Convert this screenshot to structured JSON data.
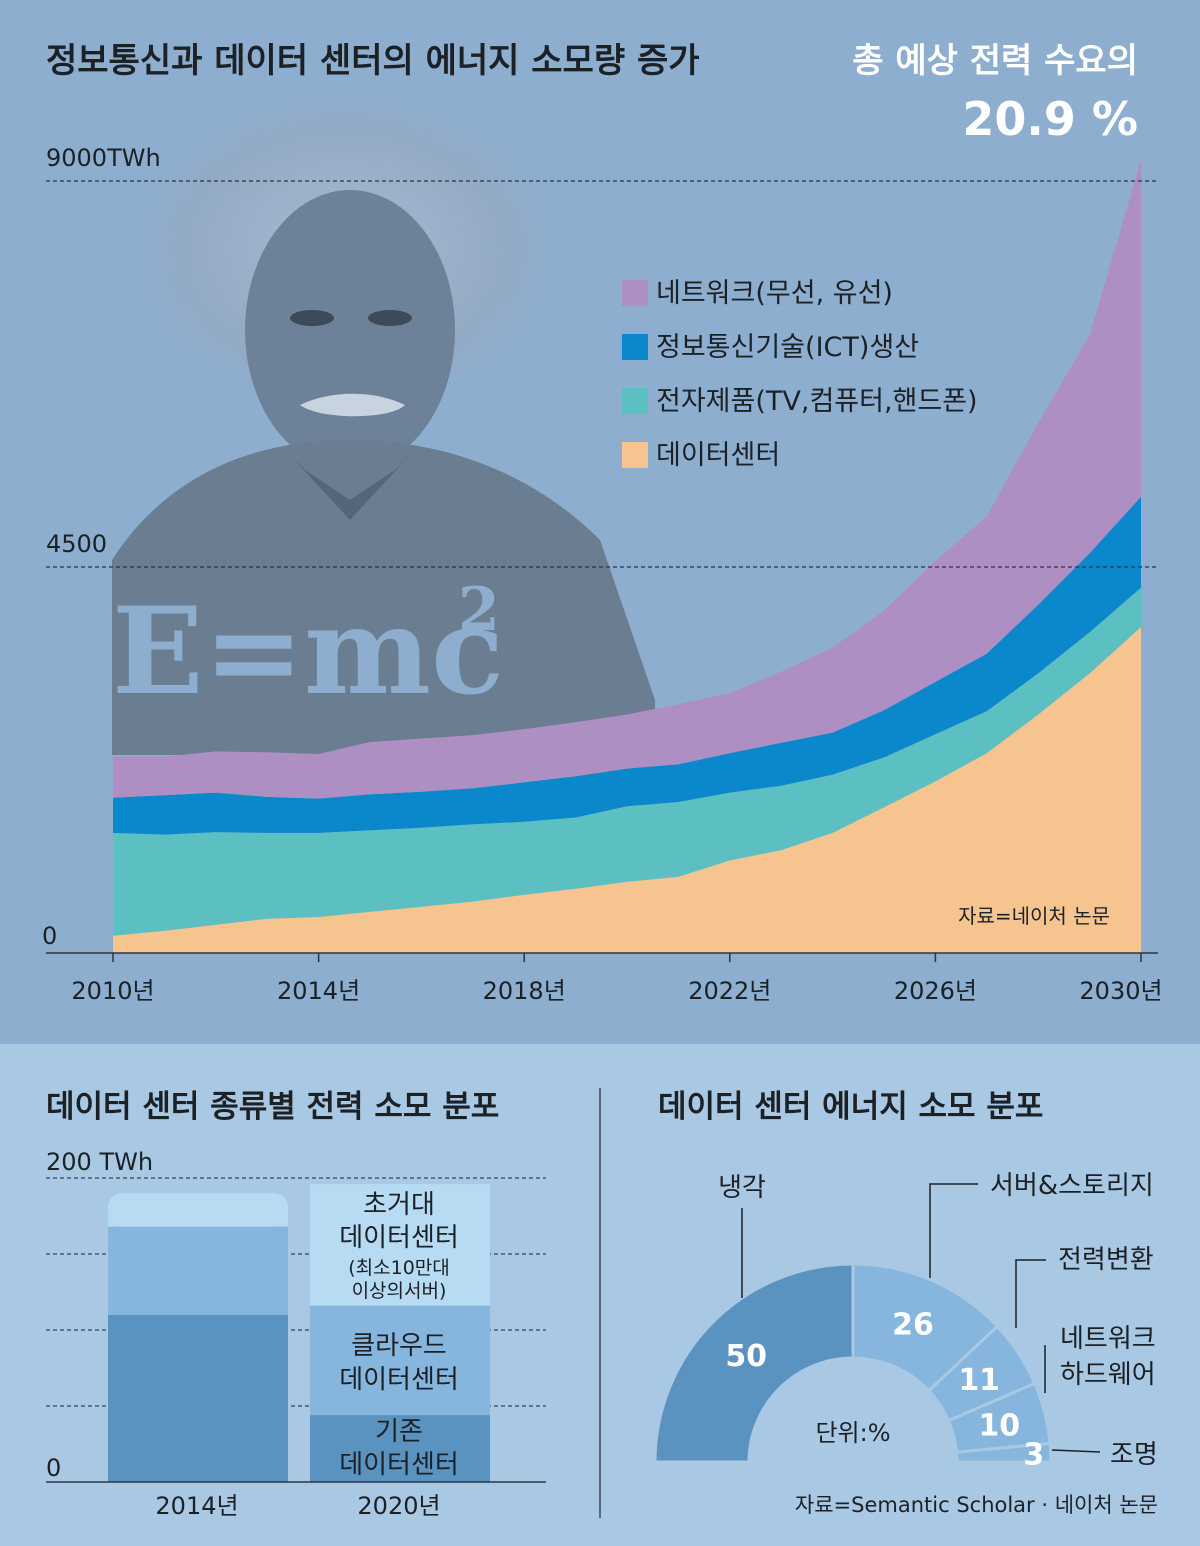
{
  "main_chart": {
    "title": "정보통신과 데이터 센터의 에너지 소모량 증가",
    "callout_line1": "총 예상 전력 수요의",
    "callout_value": "20.9 %",
    "ytick_labels": [
      "9000TWh",
      "4500",
      "0"
    ],
    "xtick_labels": [
      "2010년",
      "2014년",
      "2018년",
      "2022년",
      "2026년",
      "2030년"
    ],
    "source": "자료=네이처 논문",
    "formula": "E=mc",
    "formula_sup": "2"
  },
  "bar_chart": {
    "title": "데이터 센터 종류별 전력 소모 분포",
    "ytick_labels": [
      "200 TWh",
      "0"
    ],
    "categories": [
      "2014년",
      "2020년"
    ],
    "segment_labels": {
      "hyperscale_1": "초거대",
      "hyperscale_2": "데이터센터",
      "hyperscale_3": "(최소10만대",
      "hyperscale_4": "이상의서버)",
      "cloud_1": "클라우드",
      "cloud_2": "데이터센터",
      "traditional_1": "기존",
      "traditional_2": "데이터센터"
    }
  },
  "donut_chart": {
    "title": "데이터 센터 에너지 소모 분포",
    "labels": [
      "냉각",
      "서버&스토리지",
      "전력변환",
      "네트워크",
      "하드웨어",
      "조명"
    ],
    "values_text": [
      "50",
      "26",
      "11",
      "10",
      "3"
    ],
    "unit": "단위:%",
    "source": "자료=Semantic Scholar · 네이처 논문"
  },
  "colors": {
    "network": "#ae8fc3",
    "ict": "#0b87cc",
    "electronics": "#5cc0c3",
    "datacenter": "#f6c48f",
    "bar_traditional": "#5b93c0",
    "bar_cloud": "#86b6dd",
    "bar_hyperscale": "#b7dbf3"
  },
  "chart_data": [
    {
      "type": "area",
      "title": "정보통신과 데이터 센터의 에너지 소모량 증가",
      "ylabel": "TWh",
      "ylim": [
        0,
        9000
      ],
      "x": [
        2010,
        2011,
        2012,
        2013,
        2014,
        2015,
        2016,
        2017,
        2018,
        2019,
        2020,
        2021,
        2022,
        2023,
        2024,
        2025,
        2026,
        2027,
        2028,
        2029,
        2030
      ],
      "stacked": true,
      "series": [
        {
          "name": "데이터센터",
          "values": [
            200,
            260,
            330,
            400,
            420,
            480,
            540,
            600,
            680,
            750,
            830,
            890,
            1080,
            1200,
            1400,
            1700,
            2000,
            2330,
            2780,
            3260,
            3800
          ]
        },
        {
          "name": "전자제품(TV,컴퓨터,핸드폰)",
          "values": [
            1200,
            1120,
            1080,
            1000,
            980,
            950,
            920,
            900,
            850,
            830,
            880,
            870,
            790,
            750,
            680,
            580,
            550,
            490,
            480,
            480,
            460
          ]
        },
        {
          "name": "정보통신기술(ICT)생산",
          "values": [
            410,
            460,
            460,
            420,
            400,
            420,
            420,
            420,
            460,
            480,
            440,
            440,
            460,
            500,
            490,
            550,
            610,
            670,
            800,
            920,
            1060
          ]
        },
        {
          "name": "네트워크(무선, 유선)",
          "values": [
            480,
            450,
            480,
            520,
            520,
            610,
            620,
            620,
            620,
            630,
            630,
            700,
            700,
            830,
            990,
            1160,
            1410,
            1600,
            2120,
            2540,
            3920
          ]
        }
      ],
      "legend": "top-right"
    },
    {
      "type": "bar",
      "title": "데이터 센터 종류별 전력 소모 분포",
      "ylabel": "TWh",
      "ylim": [
        0,
        200
      ],
      "categories": [
        "2014년",
        "2020년"
      ],
      "stacked": true,
      "series": [
        {
          "name": "기존 데이터센터",
          "values": [
            110,
            44
          ]
        },
        {
          "name": "클라우드 데이터센터",
          "values": [
            58,
            72
          ]
        },
        {
          "name": "초거대 데이터센터",
          "values": [
            22,
            80
          ]
        }
      ]
    },
    {
      "type": "pie",
      "title": "데이터 센터 에너지 소모 분포",
      "categories": [
        "냉각",
        "서버&스토리지",
        "전력변환",
        "네트워크 하드웨어",
        "조명"
      ],
      "values": [
        50,
        26,
        11,
        10,
        3
      ],
      "unit": "%"
    }
  ]
}
